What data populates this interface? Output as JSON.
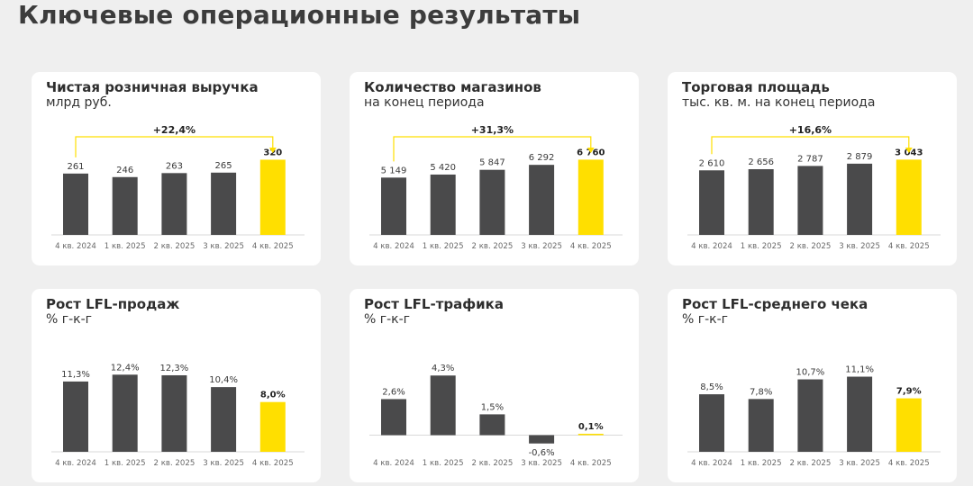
{
  "page": {
    "title": "Ключевые операционные результаты"
  },
  "colors": {
    "bar": "#4a4a4b",
    "highlight": "#ffdf00",
    "arrow": "#ffdf00",
    "axis": "#d9d9d9",
    "label": "#3a3a3a",
    "tick": "#6a6a6a"
  },
  "chart_data": [
    {
      "type": "bar",
      "title": "Чистая розничная выручка",
      "subtitle": "млрд руб.",
      "categories": [
        "4 кв. 2024",
        "1 кв. 2025",
        "2 кв. 2025",
        "3 кв. 2025",
        "4 кв. 2025"
      ],
      "values": [
        261,
        246,
        263,
        265,
        320
      ],
      "value_labels": [
        "261",
        "246",
        "263",
        "265",
        "320"
      ],
      "highlight_index": 4,
      "growth_label": "+22,4%",
      "ylim": [
        0,
        360
      ]
    },
    {
      "type": "bar",
      "title": "Количество магазинов",
      "subtitle": "на конец периода",
      "categories": [
        "4 кв. 2024",
        "1 кв. 2025",
        "2 кв. 2025",
        "3 кв. 2025",
        "4 кв. 2025"
      ],
      "values": [
        5149,
        5420,
        5847,
        6292,
        6760
      ],
      "value_labels": [
        "5 149",
        "5 420",
        "5 847",
        "6 292",
        "6 760"
      ],
      "highlight_index": 4,
      "growth_label": "+31,3%",
      "ylim": [
        0,
        7600
      ]
    },
    {
      "type": "bar",
      "title": "Торговая площадь",
      "subtitle": "тыс. кв. м. на конец периода",
      "categories": [
        "4 кв. 2024",
        "1 кв. 2025",
        "2 кв. 2025",
        "3 кв. 2025",
        "4 кв. 2025"
      ],
      "values": [
        2610,
        2656,
        2787,
        2879,
        3043
      ],
      "value_labels": [
        "2 610",
        "2 656",
        "2 787",
        "2 879",
        "3 043"
      ],
      "highlight_index": 4,
      "growth_label": "+16,6%",
      "ylim": [
        0,
        3420
      ]
    },
    {
      "type": "bar",
      "title": "Рост LFL-продаж",
      "subtitle": "% г-к-г",
      "categories": [
        "4 кв. 2024",
        "1 кв. 2025",
        "2 кв. 2025",
        "3 кв. 2025",
        "4 кв. 2025"
      ],
      "values": [
        11.3,
        12.4,
        12.3,
        10.4,
        8.0
      ],
      "value_labels": [
        "11,3%",
        "12,4%",
        "12,3%",
        "10,4%",
        "8,0%"
      ],
      "highlight_index": 4,
      "ylim": [
        0,
        13.6
      ]
    },
    {
      "type": "bar",
      "title": "Рост LFL-трафика",
      "subtitle": "% г-к-г",
      "categories": [
        "4 кв. 2024",
        "1 кв. 2025",
        "2 кв. 2025",
        "3 кв. 2025",
        "4 кв. 2025"
      ],
      "values": [
        2.6,
        4.3,
        1.5,
        -0.6,
        0.1
      ],
      "value_labels": [
        "2,6%",
        "4,3%",
        "1,5%",
        "-0,6%",
        "0,1%"
      ],
      "highlight_index": 4,
      "ylim": [
        -1.2,
        4.9
      ]
    },
    {
      "type": "bar",
      "title": "Рост LFL-среднего чека",
      "subtitle": "% г-к-г",
      "categories": [
        "4 кв. 2024",
        "1 кв. 2025",
        "2 кв. 2025",
        "3 кв. 2025",
        "4 кв. 2025"
      ],
      "values": [
        8.5,
        7.8,
        10.7,
        11.1,
        7.9
      ],
      "value_labels": [
        "8,5%",
        "7,8%",
        "10,7%",
        "11,1%",
        "7,9%"
      ],
      "highlight_index": 4,
      "ylim": [
        0,
        12.5
      ]
    }
  ]
}
